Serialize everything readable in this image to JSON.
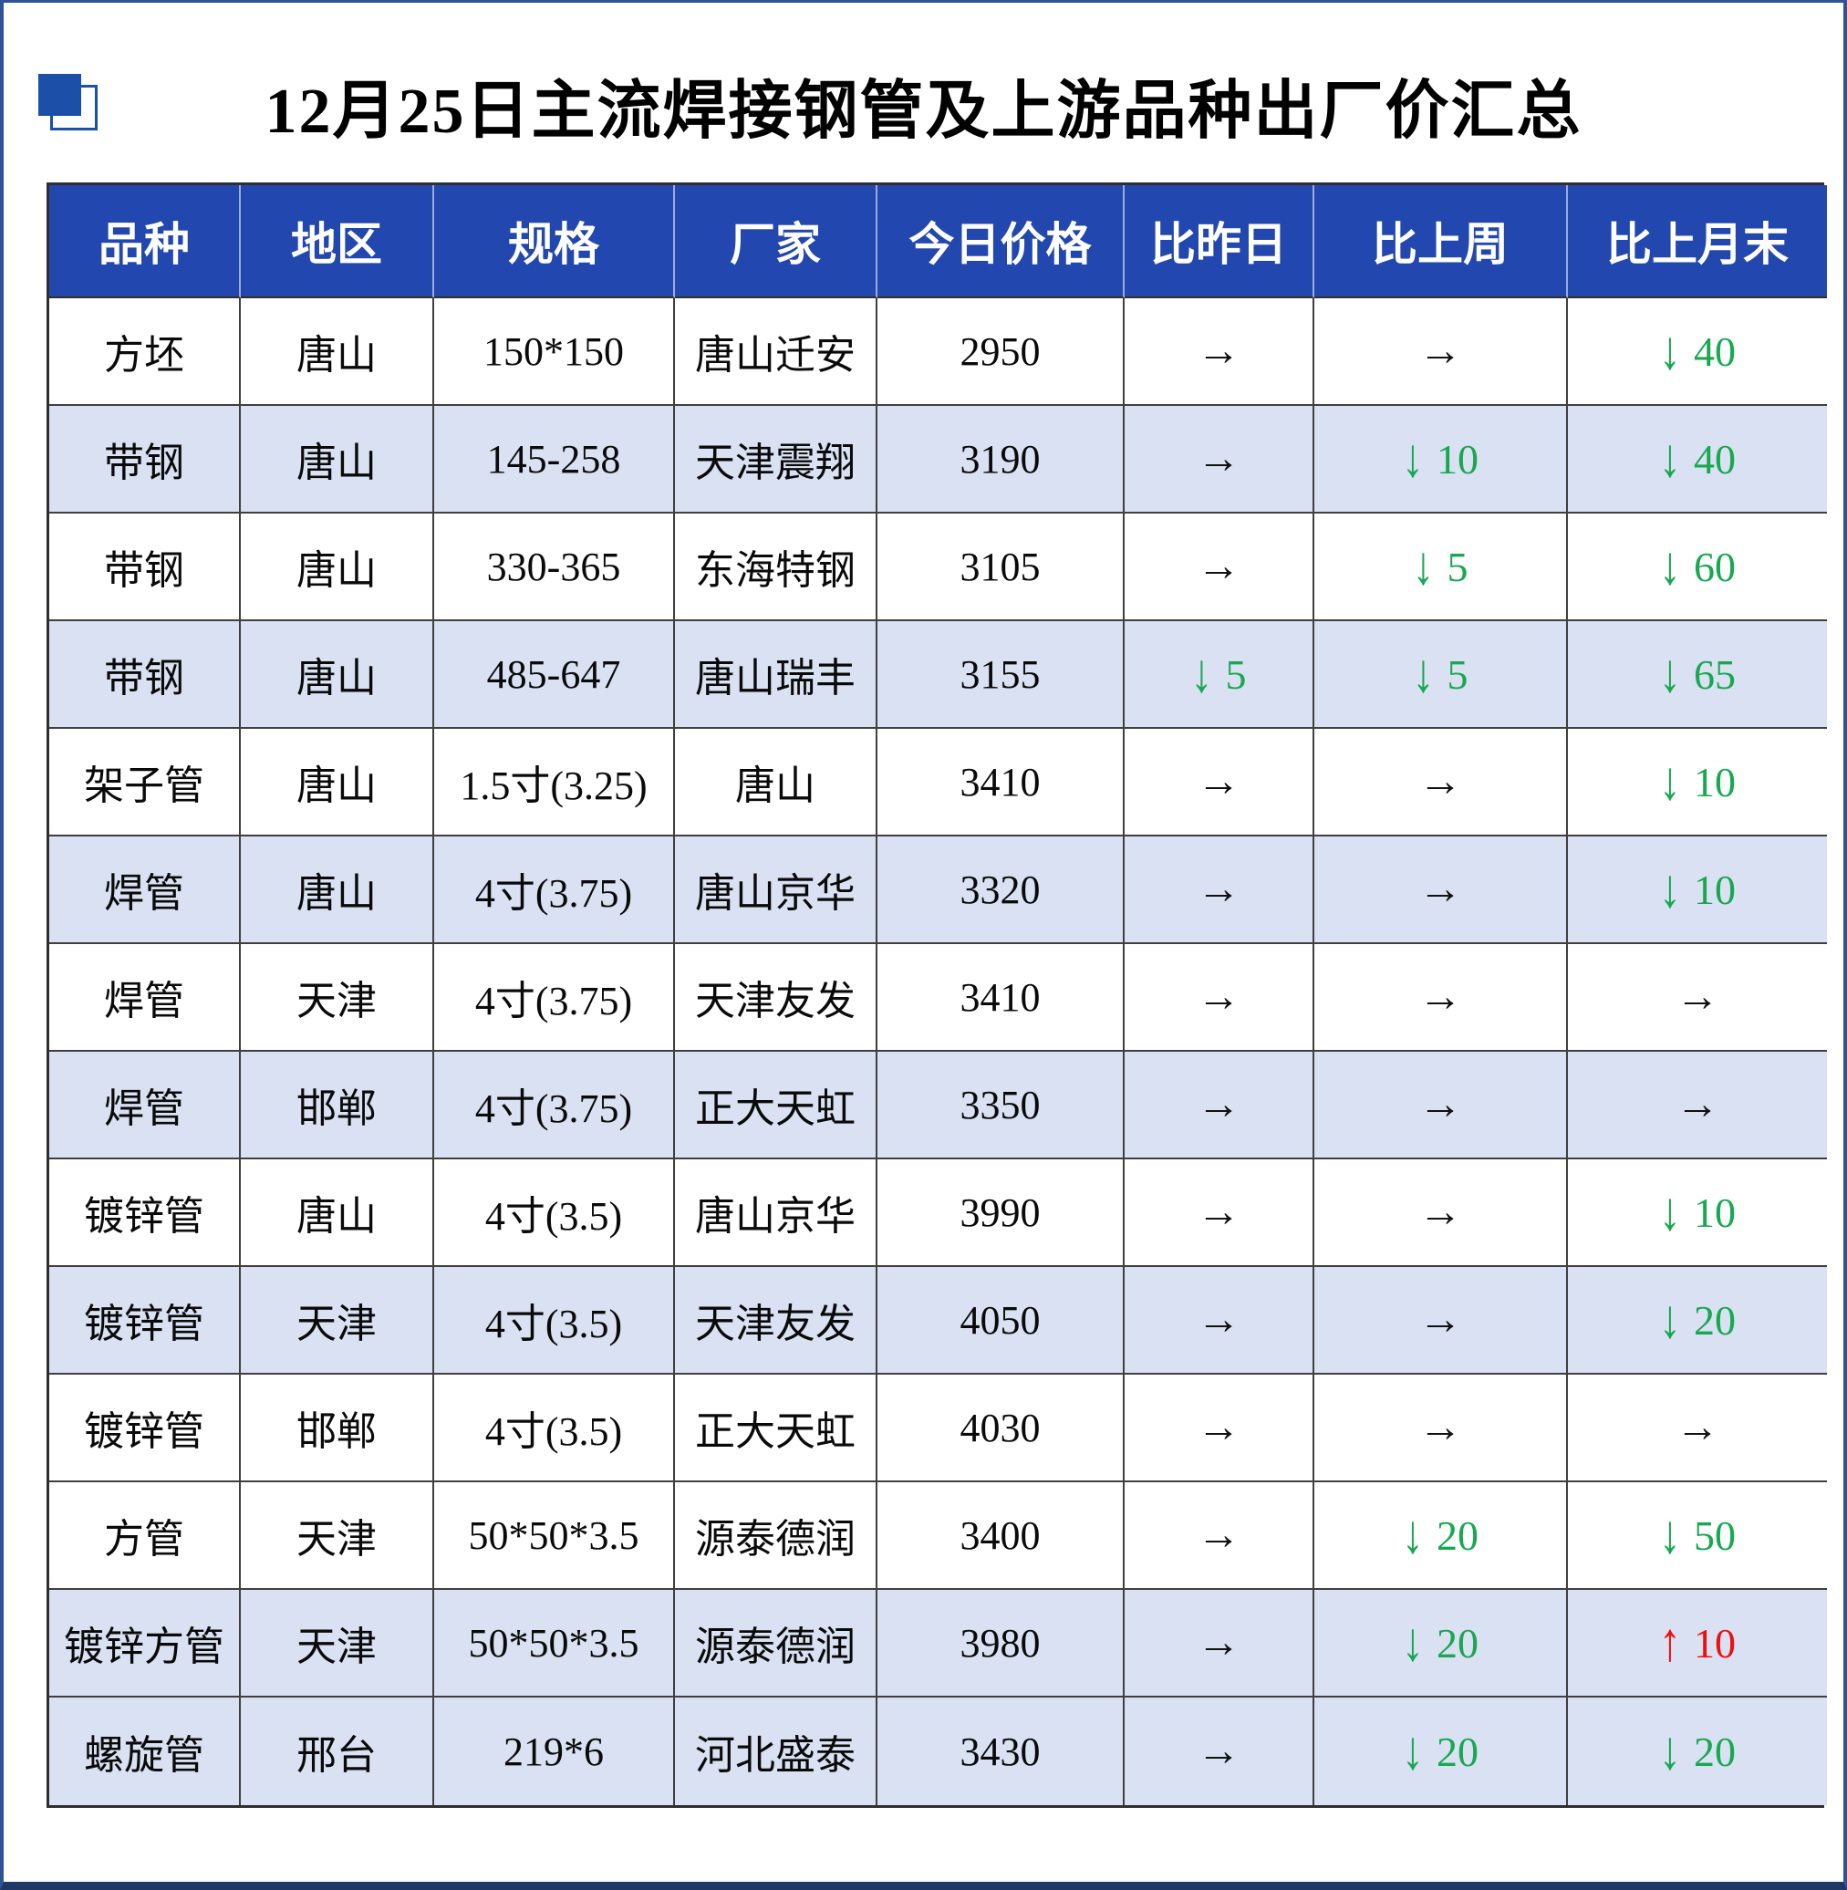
{
  "title": "12月25日主流焊接钢管及上游品种出厂价汇总",
  "colors": {
    "header_bg": "#2247ae",
    "header_text": "#ffffff",
    "stripe_bg": "#d9e1f2",
    "row_bg": "#ffffff",
    "up_red": "#f10e0e",
    "down_green": "#17a850",
    "flat_black": "#111111",
    "frame_blue": "#2f5496",
    "frame_dark": "#1f3864",
    "accent_square": "#1c4fa8",
    "grid_line": "#3f3f3f"
  },
  "trend_icons": {
    "flat": "→",
    "down": "↓",
    "up": "↑"
  },
  "table": {
    "columns": [
      {
        "key": "variety",
        "label": "品种"
      },
      {
        "key": "region",
        "label": "地区"
      },
      {
        "key": "spec",
        "label": "规格"
      },
      {
        "key": "manufacturer",
        "label": "厂家"
      },
      {
        "key": "price_today",
        "label": "今日价格"
      },
      {
        "key": "vs_yesterday",
        "label": "比昨日"
      },
      {
        "key": "vs_last_week",
        "label": "比上周"
      },
      {
        "key": "vs_last_month_end",
        "label": "比上月末"
      }
    ],
    "rows": [
      {
        "variety": "方坯",
        "region": "唐山",
        "spec": "150*150",
        "manufacturer": "唐山迁安",
        "price_today": "2950",
        "vs_yesterday": {
          "dir": "flat",
          "delta": ""
        },
        "vs_last_week": {
          "dir": "flat",
          "delta": ""
        },
        "vs_last_month_end": {
          "dir": "down",
          "delta": "40"
        },
        "shaded": false
      },
      {
        "variety": "带钢",
        "region": "唐山",
        "spec": "145-258",
        "manufacturer": "天津震翔",
        "price_today": "3190",
        "vs_yesterday": {
          "dir": "flat",
          "delta": ""
        },
        "vs_last_week": {
          "dir": "down",
          "delta": "10"
        },
        "vs_last_month_end": {
          "dir": "down",
          "delta": "40"
        },
        "shaded": true
      },
      {
        "variety": "带钢",
        "region": "唐山",
        "spec": "330-365",
        "manufacturer": "东海特钢",
        "price_today": "3105",
        "vs_yesterday": {
          "dir": "flat",
          "delta": ""
        },
        "vs_last_week": {
          "dir": "down",
          "delta": "5"
        },
        "vs_last_month_end": {
          "dir": "down",
          "delta": "60"
        },
        "shaded": false
      },
      {
        "variety": "带钢",
        "region": "唐山",
        "spec": "485-647",
        "manufacturer": "唐山瑞丰",
        "price_today": "3155",
        "vs_yesterday": {
          "dir": "down",
          "delta": "5"
        },
        "vs_last_week": {
          "dir": "down",
          "delta": "5"
        },
        "vs_last_month_end": {
          "dir": "down",
          "delta": "65"
        },
        "shaded": true
      },
      {
        "variety": "架子管",
        "region": "唐山",
        "spec": "1.5寸(3.25)",
        "manufacturer": "唐山",
        "price_today": "3410",
        "vs_yesterday": {
          "dir": "flat",
          "delta": ""
        },
        "vs_last_week": {
          "dir": "flat",
          "delta": ""
        },
        "vs_last_month_end": {
          "dir": "down",
          "delta": "10"
        },
        "shaded": false
      },
      {
        "variety": "焊管",
        "region": "唐山",
        "spec": "4寸(3.75)",
        "manufacturer": "唐山京华",
        "price_today": "3320",
        "vs_yesterday": {
          "dir": "flat",
          "delta": ""
        },
        "vs_last_week": {
          "dir": "flat",
          "delta": ""
        },
        "vs_last_month_end": {
          "dir": "down",
          "delta": "10"
        },
        "shaded": true
      },
      {
        "variety": "焊管",
        "region": "天津",
        "spec": "4寸(3.75)",
        "manufacturer": "天津友发",
        "price_today": "3410",
        "vs_yesterday": {
          "dir": "flat",
          "delta": ""
        },
        "vs_last_week": {
          "dir": "flat",
          "delta": ""
        },
        "vs_last_month_end": {
          "dir": "flat",
          "delta": ""
        },
        "shaded": false
      },
      {
        "variety": "焊管",
        "region": "邯郸",
        "spec": "4寸(3.75)",
        "manufacturer": "正大天虹",
        "price_today": "3350",
        "vs_yesterday": {
          "dir": "flat",
          "delta": ""
        },
        "vs_last_week": {
          "dir": "flat",
          "delta": ""
        },
        "vs_last_month_end": {
          "dir": "flat",
          "delta": ""
        },
        "shaded": true
      },
      {
        "variety": "镀锌管",
        "region": "唐山",
        "spec": "4寸(3.5)",
        "manufacturer": "唐山京华",
        "price_today": "3990",
        "vs_yesterday": {
          "dir": "flat",
          "delta": ""
        },
        "vs_last_week": {
          "dir": "flat",
          "delta": ""
        },
        "vs_last_month_end": {
          "dir": "down",
          "delta": "10"
        },
        "shaded": false
      },
      {
        "variety": "镀锌管",
        "region": "天津",
        "spec": "4寸(3.5)",
        "manufacturer": "天津友发",
        "price_today": "4050",
        "vs_yesterday": {
          "dir": "flat",
          "delta": ""
        },
        "vs_last_week": {
          "dir": "flat",
          "delta": ""
        },
        "vs_last_month_end": {
          "dir": "down",
          "delta": "20"
        },
        "shaded": true
      },
      {
        "variety": "镀锌管",
        "region": "邯郸",
        "spec": "4寸(3.5)",
        "manufacturer": "正大天虹",
        "price_today": "4030",
        "vs_yesterday": {
          "dir": "flat",
          "delta": ""
        },
        "vs_last_week": {
          "dir": "flat",
          "delta": ""
        },
        "vs_last_month_end": {
          "dir": "flat",
          "delta": ""
        },
        "shaded": false
      },
      {
        "variety": "方管",
        "region": "天津",
        "spec": "50*50*3.5",
        "manufacturer": "源泰德润",
        "price_today": "3400",
        "vs_yesterday": {
          "dir": "flat",
          "delta": ""
        },
        "vs_last_week": {
          "dir": "down",
          "delta": "20"
        },
        "vs_last_month_end": {
          "dir": "down",
          "delta": "50"
        },
        "shaded": false
      },
      {
        "variety": "镀锌方管",
        "region": "天津",
        "spec": "50*50*3.5",
        "manufacturer": "源泰德润",
        "price_today": "3980",
        "vs_yesterday": {
          "dir": "flat",
          "delta": ""
        },
        "vs_last_week": {
          "dir": "down",
          "delta": "20"
        },
        "vs_last_month_end": {
          "dir": "up",
          "delta": "10"
        },
        "shaded": true
      },
      {
        "variety": "螺旋管",
        "region": "邢台",
        "spec": "219*6",
        "manufacturer": "河北盛泰",
        "price_today": "3430",
        "vs_yesterday": {
          "dir": "flat",
          "delta": ""
        },
        "vs_last_week": {
          "dir": "down",
          "delta": "20"
        },
        "vs_last_month_end": {
          "dir": "down",
          "delta": "20"
        },
        "shaded": true
      }
    ]
  }
}
